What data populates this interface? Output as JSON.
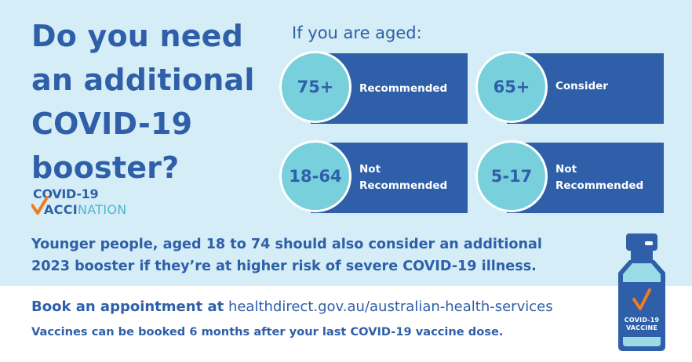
{
  "headline": {
    "lines": [
      "Do you need",
      "an additional",
      "COVID-19",
      "booster?"
    ]
  },
  "logo": {
    "top": "COVID-19",
    "bottom_a": "ACCI",
    "bottom_b": "NATION"
  },
  "age_prompt": "If you are aged:",
  "age_groups": [
    {
      "age": "75+",
      "status_lines": [
        "Recommended"
      ]
    },
    {
      "age": "65+",
      "status_lines": [
        "Consider"
      ]
    },
    {
      "age": "18-64",
      "status_lines": [
        "Not",
        "Recommended"
      ]
    },
    {
      "age": "5-17",
      "status_lines": [
        "Not",
        "Recommended"
      ]
    }
  ],
  "younger_note": {
    "lines": [
      "Younger people, aged 18 to 74 should also consider an additional",
      "2023 booster if they’re at higher risk of severe COVID-19 illness."
    ]
  },
  "booking": {
    "lead": "Book an appointment at",
    "link": "healthdirect.gov.au/australian-health-services",
    "note": "Vaccines can be booked 6 months after your last COVID-19 vaccine dose."
  },
  "vial": {
    "line1": "COVID-19",
    "line2": "VACCINE"
  },
  "colors": {
    "background": "#d4edf6",
    "navy": "#2e5fa8",
    "aqua": "#79d0dd",
    "orange_check": "#f07b22",
    "band": "#ffffff"
  }
}
